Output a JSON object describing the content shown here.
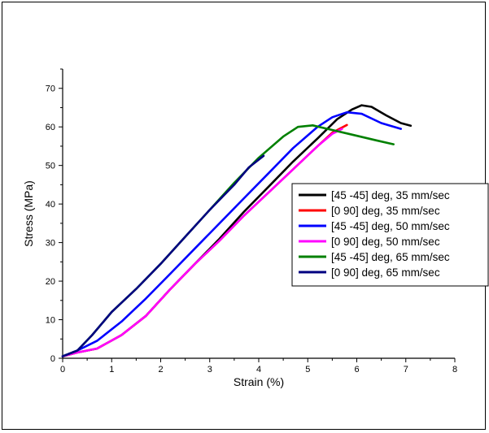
{
  "chart_data": {
    "type": "line",
    "title": "",
    "xlabel": "Strain (%)",
    "ylabel": "Stress (MPa)",
    "xlim": [
      0,
      8
    ],
    "ylim": [
      0,
      75
    ],
    "x_ticks": [
      0,
      1,
      2,
      3,
      4,
      5,
      6,
      7,
      8
    ],
    "y_ticks": [
      0,
      10,
      20,
      30,
      40,
      50,
      60,
      70
    ],
    "grid": false,
    "legend_position": "right",
    "series": [
      {
        "name": "[45 -45] deg, 35 mm/sec",
        "color": "#000000",
        "points": [
          [
            0,
            0.5
          ],
          [
            0.3,
            1.5
          ],
          [
            0.7,
            2.5
          ],
          [
            1.2,
            6
          ],
          [
            1.7,
            11
          ],
          [
            2.2,
            18
          ],
          [
            2.7,
            24.5
          ],
          [
            3.2,
            31
          ],
          [
            3.7,
            38
          ],
          [
            4.2,
            44.5
          ],
          [
            4.7,
            51
          ],
          [
            5.2,
            57
          ],
          [
            5.6,
            62
          ],
          [
            5.9,
            64.5
          ],
          [
            6.1,
            65.6
          ],
          [
            6.3,
            65.2
          ],
          [
            6.6,
            63
          ],
          [
            6.9,
            61
          ],
          [
            7.1,
            60.3
          ]
        ]
      },
      {
        "name": "[0 90] deg, 35 mm/sec",
        "color": "#ff0000",
        "points": [
          [
            0,
            0.5
          ],
          [
            0.3,
            1.5
          ],
          [
            0.7,
            2.5
          ],
          [
            1.2,
            6
          ],
          [
            1.7,
            11
          ],
          [
            2.2,
            18
          ],
          [
            2.7,
            24.5
          ],
          [
            3.2,
            30.5
          ],
          [
            3.7,
            37
          ],
          [
            4.2,
            43
          ],
          [
            4.7,
            49
          ],
          [
            5.2,
            55
          ],
          [
            5.5,
            58.5
          ],
          [
            5.8,
            60.5
          ]
        ]
      },
      {
        "name": "[45 -45] deg, 50 mm/sec",
        "color": "#0000ff",
        "points": [
          [
            0,
            0.5
          ],
          [
            0.3,
            2
          ],
          [
            0.7,
            4.5
          ],
          [
            1.2,
            9.5
          ],
          [
            1.7,
            15.5
          ],
          [
            2.2,
            22
          ],
          [
            2.7,
            28.5
          ],
          [
            3.2,
            35
          ],
          [
            3.7,
            41.5
          ],
          [
            4.2,
            48
          ],
          [
            4.7,
            54.5
          ],
          [
            5.2,
            60
          ],
          [
            5.5,
            62.5
          ],
          [
            5.8,
            63.8
          ],
          [
            6.1,
            63.4
          ],
          [
            6.5,
            61
          ],
          [
            6.9,
            59.5
          ]
        ]
      },
      {
        "name": "[0 90] deg, 50 mm/sec",
        "color": "#ff00ff",
        "points": [
          [
            0,
            0.5
          ],
          [
            0.3,
            1.5
          ],
          [
            0.7,
            2.5
          ],
          [
            1.2,
            6
          ],
          [
            1.7,
            11
          ],
          [
            2.2,
            18
          ],
          [
            2.7,
            24.5
          ],
          [
            3.2,
            30.5
          ],
          [
            3.7,
            37
          ],
          [
            4.2,
            43
          ],
          [
            4.7,
            49
          ],
          [
            5.2,
            55
          ],
          [
            5.5,
            58.2
          ],
          [
            5.7,
            59.5
          ]
        ]
      },
      {
        "name": "[45 -45] deg, 65 mm/sec",
        "color": "#008000",
        "points": [
          [
            0,
            0.5
          ],
          [
            0.3,
            2
          ],
          [
            0.6,
            6
          ],
          [
            1.0,
            12
          ],
          [
            1.5,
            18
          ],
          [
            2.0,
            24.5
          ],
          [
            2.5,
            31.5
          ],
          [
            3.0,
            38.5
          ],
          [
            3.5,
            45.5
          ],
          [
            4.0,
            52
          ],
          [
            4.5,
            57.5
          ],
          [
            4.8,
            60
          ],
          [
            5.1,
            60.4
          ],
          [
            5.4,
            59.5
          ],
          [
            5.9,
            58
          ],
          [
            6.4,
            56.5
          ],
          [
            6.75,
            55.5
          ]
        ]
      },
      {
        "name": "[0 90] deg, 65 mm/sec",
        "color": "#000080",
        "points": [
          [
            0,
            0.5
          ],
          [
            0.3,
            2
          ],
          [
            0.6,
            6
          ],
          [
            1.0,
            12
          ],
          [
            1.5,
            18
          ],
          [
            2.0,
            24.5
          ],
          [
            2.5,
            31.5
          ],
          [
            3.0,
            38.5
          ],
          [
            3.5,
            45
          ],
          [
            3.8,
            49.5
          ],
          [
            4.1,
            52.5
          ]
        ]
      }
    ]
  }
}
